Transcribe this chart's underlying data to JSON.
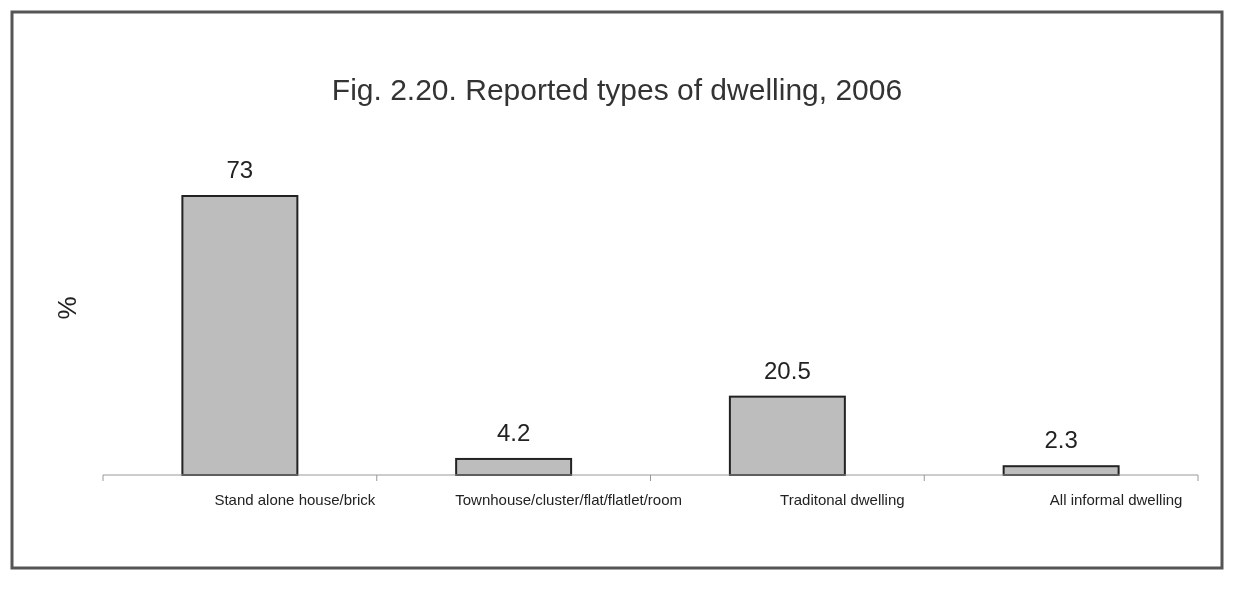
{
  "chart_data": {
    "type": "bar",
    "title": "Fig. 2.20. Reported types of dwelling, 2006",
    "ylabel": "%",
    "categories": [
      "Stand alone house/brick",
      "Townhouse/cluster/flat/flatlet/room",
      "Traditonal dwelling",
      "All informal dwelling"
    ],
    "values": [
      73,
      4.2,
      20.5,
      2.3
    ],
    "color": "#bdbdbd",
    "data_labels": true
  }
}
